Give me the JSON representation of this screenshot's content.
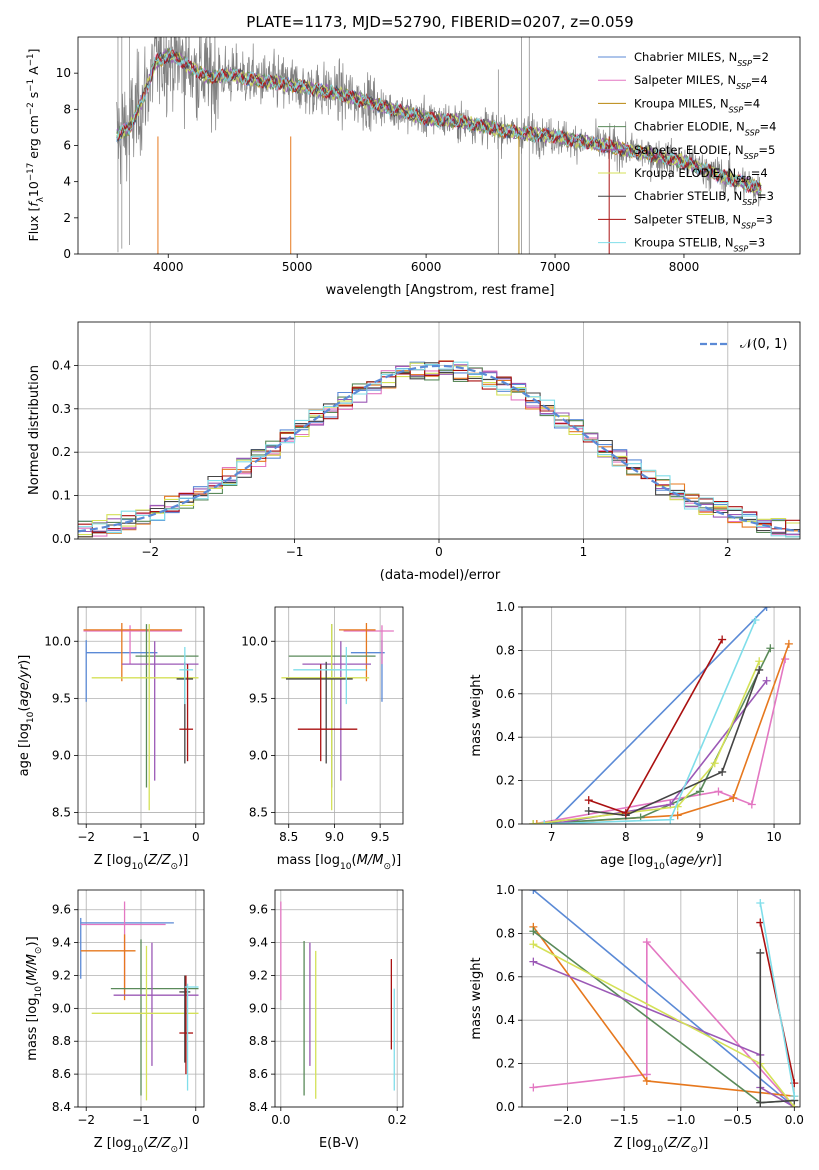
{
  "chart_data": [
    {
      "type": "line",
      "title": "PLATE=1173, MJD=52790, FIBERID=0207, z=0.059",
      "xlabel": "wavelength [Angstrom, rest frame]",
      "ylabel": "Flux [f_λ 10^-17 erg cm^-2 s^-1 A^-1]",
      "xlim": [
        3300,
        8900
      ],
      "ylim": [
        0,
        12
      ],
      "xticks": [
        4000,
        5000,
        6000,
        7000,
        8000
      ],
      "yticks": [
        0,
        2,
        4,
        6,
        8,
        10
      ],
      "grid": false,
      "legend_position": "top-right",
      "data_color": "#808080",
      "data_wavelength_range": [
        3600,
        8600
      ],
      "continuum": {
        "x": [
          3600,
          3700,
          3800,
          3900,
          4000,
          4100,
          4200,
          4300,
          4500,
          4700,
          5000,
          5300,
          5600,
          6000,
          6300,
          6600,
          7000,
          7300,
          7600,
          8000,
          8300,
          8600
        ],
        "y": [
          6.5,
          7.0,
          8.5,
          10.6,
          11.0,
          10.7,
          10.2,
          9.8,
          9.9,
          9.6,
          9.3,
          8.9,
          8.3,
          7.5,
          7.3,
          6.8,
          6.5,
          6.1,
          5.7,
          5.1,
          4.3,
          3.6
        ]
      },
      "series": [
        {
          "name": "Chabrier MILES, N_SSP=2",
          "label_main": "Chabrier MILES, N",
          "label_sub": "SSP",
          "label_tail": "=2",
          "color": "#5b8ad6"
        },
        {
          "name": "Salpeter MILES, N_SSP=4",
          "label_main": "Salpeter MILES, N",
          "label_sub": "SSP",
          "label_tail": "=4",
          "color": "#e377c2"
        },
        {
          "name": "Kroupa MILES, N_SSP=4",
          "label_main": "Kroupa MILES, N",
          "label_sub": "SSP",
          "label_tail": "=4",
          "color": "#b8860b"
        },
        {
          "name": "Chabrier ELODIE, N_SSP=4",
          "label_main": "Chabrier ELODIE, N",
          "label_sub": "SSP",
          "label_tail": "=4",
          "color": "#5a8a5a"
        },
        {
          "name": "Salpeter ELODIE, N_SSP=5",
          "label_main": "Salpeter ELODIE, N",
          "label_sub": "SSP",
          "label_tail": "=5",
          "color": "#9b59b6"
        },
        {
          "name": "Kroupa ELODIE, N_SSP=4",
          "label_main": "Kroupa ELODIE, N",
          "label_sub": "SSP",
          "label_tail": "=4",
          "color": "#d4e157"
        },
        {
          "name": "Chabrier STELIB, N_SSP=3",
          "label_main": "Chabrier STELIB, N",
          "label_sub": "SSP",
          "label_tail": "=3",
          "color": "#444444"
        },
        {
          "name": "Salpeter STELIB, N_SSP=3",
          "label_main": "Salpeter STELIB, N",
          "label_sub": "SSP",
          "label_tail": "=3",
          "color": "#aa1111"
        },
        {
          "name": "Kroupa STELIB, N_SSP=3",
          "label_main": "Kroupa STELIB, N",
          "label_sub": "SSP",
          "label_tail": "=3",
          "color": "#80deea"
        }
      ]
    },
    {
      "type": "histogram",
      "xlabel": "(data-model)/error",
      "ylabel": "Normed distribution",
      "xlim": [
        -2.5,
        2.5
      ],
      "ylim": [
        0,
        0.5
      ],
      "xticks": [
        -2,
        -1,
        0,
        1,
        2
      ],
      "yticks": [
        0.0,
        0.1,
        0.2,
        0.3,
        0.4
      ],
      "grid": true,
      "bin_edges_range": [
        -2.5,
        2.5
      ],
      "bin_width": 0.1,
      "reference_curve": {
        "name": "𝒩(0, 1)",
        "color": "#5b8ad6",
        "style": "dashed"
      },
      "colors": [
        "#5b8ad6",
        "#e377c2",
        "#e6781e",
        "#5a8a5a",
        "#9b59b6",
        "#d4e157",
        "#444444",
        "#aa1111",
        "#80deea"
      ],
      "approx_peak_density": 0.4,
      "approx_tail_density": 0.02
    },
    {
      "type": "scatter",
      "subtype": "errorbar",
      "xlabel": "Z [log10(Z/Z⊙)]",
      "ylabel": "age  [log10(age/yr)]",
      "xlim": [
        -2.15,
        0.15
      ],
      "ylim": [
        8.4,
        10.3
      ],
      "xticks": [
        -2,
        -1,
        0
      ],
      "yticks": [
        8.5,
        9.0,
        9.5,
        10.0
      ],
      "grid": true,
      "points": [
        {
          "color": "#5b8ad6",
          "x": [
            -2.0,
            -0.7
          ],
          "y": 9.9,
          "x_mark": -2.0,
          "y_range": [
            9.47,
            10.01
          ]
        },
        {
          "color": "#e377c2",
          "x": [
            -2.05,
            -0.25
          ],
          "y": 10.09,
          "x_mark": -1.2,
          "y_range": [
            9.8,
            10.14
          ]
        },
        {
          "color": "#e6781e",
          "x": [
            -2.05,
            -0.25
          ],
          "y": 10.1,
          "x_mark": -1.35,
          "y_range": [
            9.65,
            10.16
          ]
        },
        {
          "color": "#5a8a5a",
          "x": [
            -1.1,
            0.05
          ],
          "y": 9.87,
          "x_mark": -0.9,
          "y_range": [
            8.72,
            10.15
          ]
        },
        {
          "color": "#9b59b6",
          "x": [
            -1.35,
            0.05
          ],
          "y": 9.8,
          "x_mark": -0.75,
          "y_range": [
            8.78,
            10.0
          ]
        },
        {
          "color": "#d4e157",
          "x": [
            -1.9,
            0.05
          ],
          "y": 9.68,
          "x_mark": -0.85,
          "y_range": [
            8.52,
            10.15
          ]
        },
        {
          "color": "#444444",
          "x": [
            -0.35,
            -0.05
          ],
          "y": 9.67,
          "x_mark": -0.2,
          "y_range": [
            8.93,
            9.82
          ]
        },
        {
          "color": "#aa1111",
          "x": [
            -0.3,
            -0.05
          ],
          "y": 9.23,
          "x_mark": -0.15,
          "y_range": [
            8.95,
            9.8
          ]
        },
        {
          "color": "#80deea",
          "x": [
            -0.3,
            -0.05
          ],
          "y": 9.75,
          "x_mark": -0.2,
          "y_range": [
            9.45,
            9.95
          ]
        }
      ]
    },
    {
      "type": "scatter",
      "subtype": "errorbar",
      "xlabel": "mass [log10(M/M⊙)]",
      "ylabel": "",
      "xlim": [
        8.35,
        9.75
      ],
      "ylim": [
        8.4,
        10.3
      ],
      "xticks": [
        8.5,
        9.0,
        9.5
      ],
      "yticks": [
        8.5,
        9.0,
        9.5,
        10.0
      ],
      "grid": true,
      "points": [
        {
          "color": "#5b8ad6",
          "x": [
            9.18,
            9.55
          ],
          "y": 9.9,
          "x_mark": 9.52,
          "y_range": [
            9.47,
            10.01
          ]
        },
        {
          "color": "#e377c2",
          "x": [
            9.1,
            9.65
          ],
          "y": 10.09,
          "x_mark": 9.52,
          "y_range": [
            9.8,
            10.14
          ]
        },
        {
          "color": "#e6781e",
          "x": [
            9.05,
            9.45
          ],
          "y": 10.1,
          "x_mark": 9.35,
          "y_range": [
            9.65,
            10.16
          ]
        },
        {
          "color": "#5a8a5a",
          "x": [
            8.5,
            9.45
          ],
          "y": 9.87,
          "x_mark": 8.97,
          "y_range": [
            8.72,
            10.15
          ]
        },
        {
          "color": "#9b59b6",
          "x": [
            8.65,
            9.4
          ],
          "y": 9.8,
          "x_mark": 9.07,
          "y_range": [
            8.78,
            10.0
          ]
        },
        {
          "color": "#d4e157",
          "x": [
            8.42,
            9.38
          ],
          "y": 9.68,
          "x_mark": 8.97,
          "y_range": [
            8.52,
            10.15
          ]
        },
        {
          "color": "#444444",
          "x": [
            8.47,
            9.2
          ],
          "y": 9.67,
          "x_mark": 8.91,
          "y_range": [
            8.93,
            9.82
          ]
        },
        {
          "color": "#aa1111",
          "x": [
            8.6,
            9.25
          ],
          "y": 9.23,
          "x_mark": 8.85,
          "y_range": [
            8.95,
            9.8
          ]
        },
        {
          "color": "#80deea",
          "x": [
            8.55,
            9.35
          ],
          "y": 9.75,
          "x_mark": 9.13,
          "y_range": [
            9.45,
            9.95
          ]
        }
      ]
    },
    {
      "type": "line",
      "xlabel": "age  [log10(age/yr)]",
      "ylabel": "mass weight",
      "xlim": [
        6.6,
        10.35
      ],
      "ylim": [
        0,
        1.0
      ],
      "xticks": [
        7,
        8,
        9,
        10
      ],
      "yticks": [
        0.0,
        0.2,
        0.4,
        0.6,
        0.8,
        1.0
      ],
      "grid": true,
      "series": [
        {
          "color": "#5b8ad6",
          "x": [
            7.0,
            9.9
          ],
          "y": [
            0.0,
            1.0
          ]
        },
        {
          "color": "#e377c2",
          "x": [
            6.75,
            9.25,
            9.7,
            10.15
          ],
          "y": [
            0.0,
            0.15,
            0.09,
            0.76
          ]
        },
        {
          "color": "#e6781e",
          "x": [
            6.8,
            8.7,
            9.45,
            10.2
          ],
          "y": [
            0.0,
            0.04,
            0.12,
            0.83
          ]
        },
        {
          "color": "#5a8a5a",
          "x": [
            6.75,
            8.2,
            9.0,
            9.95
          ],
          "y": [
            0.0,
            0.03,
            0.15,
            0.81
          ]
        },
        {
          "color": "#9b59b6",
          "x": [
            7.0,
            8.6,
            9.9
          ],
          "y": [
            0.0,
            0.09,
            0.66
          ]
        },
        {
          "color": "#d4e157",
          "x": [
            6.75,
            8.7,
            9.2,
            9.8
          ],
          "y": [
            0.0,
            0.08,
            0.28,
            0.75
          ]
        },
        {
          "color": "#444444",
          "x": [
            7.5,
            8.0,
            9.3,
            9.8
          ],
          "y": [
            0.06,
            0.04,
            0.24,
            0.71
          ]
        },
        {
          "color": "#aa1111",
          "x": [
            7.5,
            8.0,
            9.3
          ],
          "y": [
            0.11,
            0.05,
            0.85
          ]
        },
        {
          "color": "#80deea",
          "x": [
            6.9,
            8.6,
            9.75
          ],
          "y": [
            0.0,
            0.02,
            0.94
          ]
        }
      ]
    },
    {
      "type": "scatter",
      "subtype": "errorbar",
      "xlabel": "Z [log10(Z/Z⊙)]",
      "ylabel": "mass [log10(M/M⊙)]",
      "xlim": [
        -2.15,
        0.15
      ],
      "ylim": [
        8.4,
        9.72
      ],
      "xticks": [
        -2,
        -1,
        0
      ],
      "yticks": [
        8.4,
        8.6,
        8.8,
        9.0,
        9.2,
        9.4,
        9.6
      ],
      "grid": true,
      "points": [
        {
          "color": "#5b8ad6",
          "x": [
            -2.1,
            -0.4
          ],
          "y": 9.52,
          "x_mark": -2.1,
          "y_range": [
            9.18,
            9.55
          ]
        },
        {
          "color": "#e377c2",
          "x": [
            -2.1,
            -0.55
          ],
          "y": 9.51,
          "x_mark": -1.3,
          "y_range": [
            9.1,
            9.65
          ]
        },
        {
          "color": "#e6781e",
          "x": [
            -2.1,
            -1.1
          ],
          "y": 9.35,
          "x_mark": -1.3,
          "y_range": [
            9.05,
            9.45
          ]
        },
        {
          "color": "#5a8a5a",
          "x": [
            -1.55,
            0.05
          ],
          "y": 9.12,
          "x_mark": -1.0,
          "y_range": [
            8.47,
            9.42
          ]
        },
        {
          "color": "#9b59b6",
          "x": [
            -1.5,
            0.05
          ],
          "y": 9.08,
          "x_mark": -0.8,
          "y_range": [
            8.65,
            9.4
          ]
        },
        {
          "color": "#d4e157",
          "x": [
            -1.9,
            0.05
          ],
          "y": 8.97,
          "x_mark": -0.9,
          "y_range": [
            8.44,
            9.38
          ]
        },
        {
          "color": "#444444",
          "x": [
            -0.3,
            -0.1
          ],
          "y": 9.1,
          "x_mark": -0.2,
          "y_range": [
            8.67,
            9.2
          ]
        },
        {
          "color": "#aa1111",
          "x": [
            -0.3,
            -0.05
          ],
          "y": 8.85,
          "x_mark": -0.18,
          "y_range": [
            8.6,
            9.2
          ]
        },
        {
          "color": "#80deea",
          "x": [
            -0.2,
            0.05
          ],
          "y": 9.13,
          "x_mark": -0.15,
          "y_range": [
            8.5,
            9.15
          ]
        }
      ]
    },
    {
      "type": "scatter",
      "subtype": "errorbar",
      "xlabel": "E(B-V)",
      "ylabel": "",
      "xlim": [
        -0.01,
        0.21
      ],
      "ylim": [
        8.4,
        9.72
      ],
      "xticks": [
        0.0,
        0.2
      ],
      "yticks": [
        8.4,
        8.6,
        8.8,
        9.0,
        9.2,
        9.4,
        9.6
      ],
      "grid": true,
      "points": [
        {
          "color": "#e377c2",
          "x": 0.0,
          "y_range": [
            9.05,
            9.65
          ]
        },
        {
          "color": "#5a8a5a",
          "x": 0.04,
          "y_range": [
            8.47,
            9.41
          ]
        },
        {
          "color": "#9b59b6",
          "x": 0.05,
          "y_range": [
            8.65,
            9.4
          ]
        },
        {
          "color": "#d4e157",
          "x": 0.06,
          "y_range": [
            8.45,
            9.35
          ]
        },
        {
          "color": "#aa1111",
          "x": 0.19,
          "y_range": [
            8.75,
            9.3
          ]
        },
        {
          "color": "#80deea",
          "x": 0.195,
          "y_range": [
            8.5,
            9.12
          ]
        }
      ]
    },
    {
      "type": "line",
      "xlabel": "Z [log10(Z/Z⊙)]",
      "ylabel": "mass weight",
      "xlim": [
        -2.4,
        0.05
      ],
      "ylim": [
        0,
        1.0
      ],
      "xticks": [
        -2.0,
        -1.5,
        -1.0,
        -0.5,
        0.0
      ],
      "yticks": [
        0.0,
        0.2,
        0.4,
        0.6,
        0.8,
        1.0
      ],
      "grid": true,
      "series": [
        {
          "color": "#5b8ad6",
          "x": [
            -2.3,
            0.0
          ],
          "y": [
            1.0,
            0.0
          ]
        },
        {
          "color": "#e377c2",
          "x": [
            -2.3,
            -1.3,
            -1.3,
            0.0
          ],
          "y": [
            0.09,
            0.15,
            0.76,
            0.0
          ]
        },
        {
          "color": "#e6781e",
          "x": [
            -2.3,
            -1.3,
            0.0
          ],
          "y": [
            0.83,
            0.12,
            0.05
          ]
        },
        {
          "color": "#5a8a5a",
          "x": [
            -2.3,
            -0.3,
            0.0
          ],
          "y": [
            0.81,
            0.02,
            0.03
          ]
        },
        {
          "color": "#9b59b6",
          "x": [
            -2.3,
            -0.3,
            -0.3,
            0.0
          ],
          "y": [
            0.67,
            0.24,
            0.09,
            0.0
          ]
        },
        {
          "color": "#d4e157",
          "x": [
            -2.3,
            -0.3,
            0.0
          ],
          "y": [
            0.75,
            0.2,
            0.0
          ]
        },
        {
          "color": "#444444",
          "x": [
            -0.3,
            -0.3,
            0.0
          ],
          "y": [
            0.71,
            0.02,
            0.03
          ]
        },
        {
          "color": "#aa1111",
          "x": [
            -0.3,
            0.0
          ],
          "y": [
            0.85,
            0.11
          ]
        },
        {
          "color": "#80deea",
          "x": [
            -0.3,
            0.0
          ],
          "y": [
            0.94,
            0.05
          ]
        }
      ]
    }
  ]
}
